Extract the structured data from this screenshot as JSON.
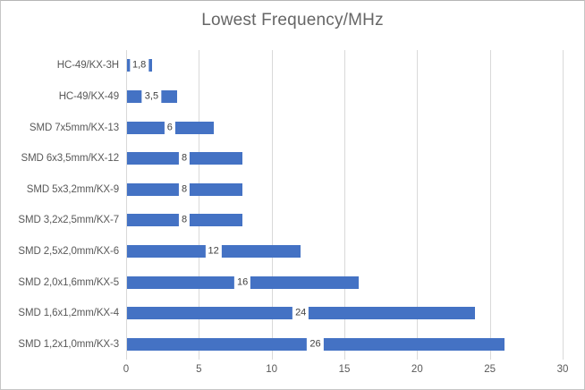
{
  "chart_data": {
    "type": "bar",
    "orientation": "horizontal",
    "title": "Lowest Frequency/MHz",
    "categories": [
      "HC-49/KX-3H",
      "HC-49/KX-49",
      "SMD 7x5mm/KX-13",
      "SMD 6x3,5mm/KX-12",
      "SMD 5x3,2mm/KX-9",
      "SMD 3,2x2,5mm/KX-7",
      "SMD 2,5x2,0mm/KX-6",
      "SMD 2,0x1,6mm/KX-5",
      "SMD 1,6x1,2mm/KX-4",
      "SMD 1,2x1,0mm/KX-3"
    ],
    "values": [
      1.8,
      3.5,
      6,
      8,
      8,
      8,
      12,
      16,
      24,
      26
    ],
    "value_labels": [
      "1,8",
      "3,5",
      "6",
      "8",
      "8",
      "8",
      "12",
      "16",
      "24",
      "26"
    ],
    "value_label_position": "inside-center",
    "xlim": [
      0,
      30
    ],
    "x_ticks": [
      0,
      5,
      10,
      15,
      20,
      25,
      30
    ],
    "x_tick_labels": [
      "0",
      "5",
      "10",
      "15",
      "20",
      "25",
      "30"
    ],
    "grid": true,
    "legend_position": "none",
    "colors": {
      "bar": "#4472C4",
      "gridline": "#D9D9D9",
      "plot_background": "#FFFFFF",
      "chart_background": "#FFFFFF",
      "chart_border": "#C6C6C6",
      "title_text": "#666666",
      "axis_text": "#595959",
      "value_label_text": "#404040",
      "value_label_background": "#FFFFFF"
    }
  }
}
